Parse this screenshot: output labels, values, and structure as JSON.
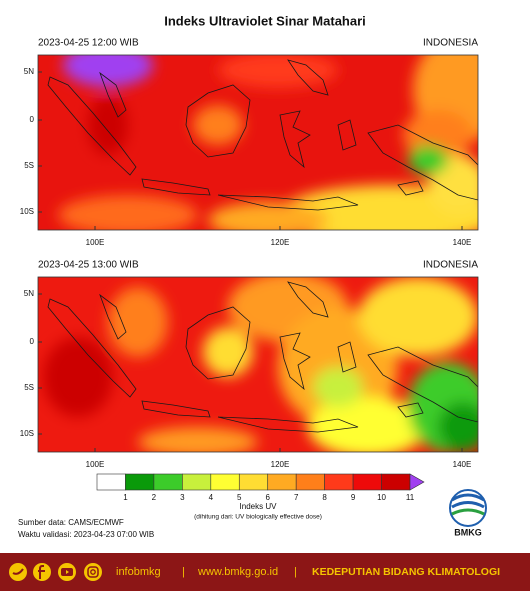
{
  "title": "Indeks Ultraviolet Sinar Matahari",
  "panels": [
    {
      "time": "2023-04-25  12:00 WIB",
      "region": "INDONESIA",
      "lat_labels": [
        "5N",
        "0",
        "5S",
        "10S"
      ],
      "lon_labels": [
        "100E",
        "120E",
        "140E"
      ]
    },
    {
      "time": "2023-04-25  13:00 WIB",
      "region": "INDONESIA",
      "lat_labels": [
        "5N",
        "0",
        "5S",
        "10S"
      ],
      "lon_labels": [
        "100E",
        "120E",
        "140E"
      ]
    }
  ],
  "legend": {
    "levels": [
      1,
      2,
      3,
      4,
      5,
      6,
      7,
      8,
      9,
      10,
      11
    ],
    "colors": [
      "#ffffff",
      "#0a9a0a",
      "#3ccc2a",
      "#c8f03c",
      "#ffff33",
      "#ffdd33",
      "#ffaa22",
      "#ff7f1a",
      "#ff3a1a",
      "#ee0a0a",
      "#cc0000",
      "#a040f0"
    ],
    "title": "Indeks UV",
    "note": "(dihitung dari: UV biologically effective dose)"
  },
  "source": "Sumber data: CAMS/ECMWF",
  "validation": "Waktu validasi:  2023-04-23 07:00 WIB",
  "logo": "BMKG",
  "footer": {
    "handle": "infobmkg",
    "separator": "|",
    "website": "www.bmkg.go.id",
    "department": "KEDEPUTIAN BIDANG KLIMATOLOGI"
  }
}
